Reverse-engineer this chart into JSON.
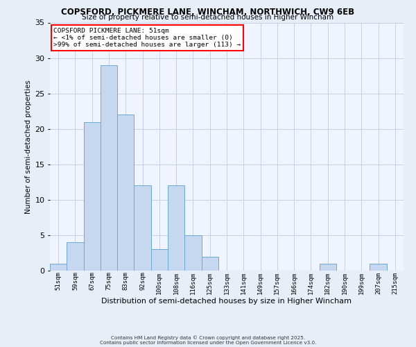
{
  "title1": "COPSFORD, PICKMERE LANE, WINCHAM, NORTHWICH, CW9 6EB",
  "title2": "Size of property relative to semi-detached houses in Higher Wincham",
  "xlabel": "Distribution of semi-detached houses by size in Higher Wincham",
  "ylabel": "Number of semi-detached properties",
  "annotation_title": "COPSFORD PICKMERE LANE: 51sqm",
  "annotation_line1": "← <1% of semi-detached houses are smaller (0)",
  "annotation_line2": ">99% of semi-detached houses are larger (113) →",
  "footer1": "Contains HM Land Registry data © Crown copyright and database right 2025.",
  "footer2": "Contains public sector information licensed under the Open Government Licence v3.0.",
  "bins": [
    "51sqm",
    "59sqm",
    "67sqm",
    "75sqm",
    "83sqm",
    "92sqm",
    "100sqm",
    "108sqm",
    "116sqm",
    "125sqm",
    "133sqm",
    "141sqm",
    "149sqm",
    "157sqm",
    "166sqm",
    "174sqm",
    "182sqm",
    "190sqm",
    "199sqm",
    "207sqm",
    "215sqm"
  ],
  "values": [
    1,
    4,
    21,
    29,
    22,
    12,
    3,
    12,
    5,
    2,
    0,
    0,
    0,
    0,
    0,
    0,
    1,
    0,
    0,
    1,
    0
  ],
  "bar_color": "#c5d8f0",
  "bar_edge_color": "#6aaad4",
  "ylim": [
    0,
    35
  ],
  "yticks": [
    0,
    5,
    10,
    15,
    20,
    25,
    30,
    35
  ],
  "bg_color": "#e8eef8",
  "plot_bg_color": "#f0f4ff",
  "grid_color": "#c8d0e0"
}
